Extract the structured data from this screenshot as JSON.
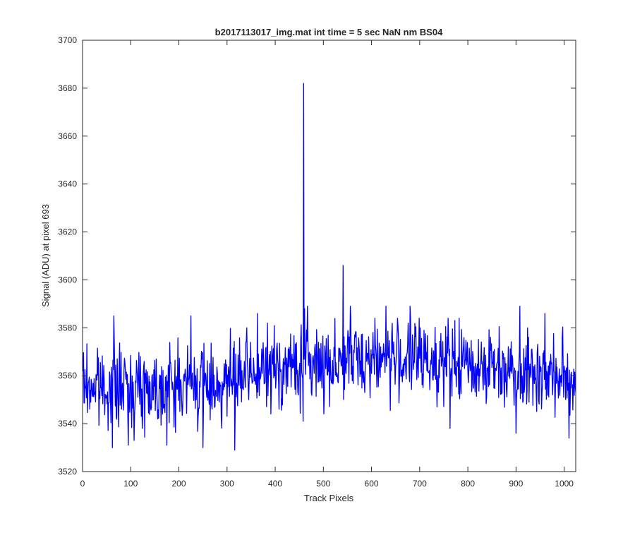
{
  "chart_data": {
    "type": "line",
    "title": "b2017113017_img.mat int time = 5 sec  NaN nm BS04",
    "xlabel": "Track Pixels",
    "ylabel": "Signal (ADU) at pixel 693",
    "xlim": [
      0,
      1024
    ],
    "ylim": [
      3520,
      3700
    ],
    "xticks": [
      0,
      100,
      200,
      300,
      400,
      500,
      600,
      700,
      800,
      900,
      1000
    ],
    "yticks": [
      3520,
      3540,
      3560,
      3580,
      3600,
      3620,
      3640,
      3660,
      3680,
      3700
    ],
    "grid": false,
    "legend": "none",
    "series": [
      {
        "color": "#0000ff",
        "x_start": 1,
        "x_step": 1,
        "noise_seed": 7,
        "baseline_knots": [
          [
            0,
            3556
          ],
          [
            100,
            3555
          ],
          [
            200,
            3556
          ],
          [
            300,
            3557
          ],
          [
            400,
            3563
          ],
          [
            500,
            3565
          ],
          [
            600,
            3568
          ],
          [
            700,
            3567
          ],
          [
            800,
            3565
          ],
          [
            900,
            3563
          ],
          [
            1024,
            3558
          ]
        ],
        "noise_amplitude": 8,
        "spikes": [
          {
            "x": 459,
            "y": 3682
          },
          {
            "x": 458,
            "y": 3541
          },
          {
            "x": 461,
            "y": 3588
          },
          {
            "x": 541,
            "y": 3606
          },
          {
            "x": 62,
            "y": 3530
          },
          {
            "x": 95,
            "y": 3531
          },
          {
            "x": 175,
            "y": 3531
          },
          {
            "x": 250,
            "y": 3530
          },
          {
            "x": 316,
            "y": 3529
          },
          {
            "x": 763,
            "y": 3538
          },
          {
            "x": 900,
            "y": 3536
          },
          {
            "x": 1010,
            "y": 3534
          },
          {
            "x": 65,
            "y": 3585
          },
          {
            "x": 225,
            "y": 3585
          },
          {
            "x": 363,
            "y": 3586
          },
          {
            "x": 467,
            "y": 3589
          },
          {
            "x": 556,
            "y": 3589
          },
          {
            "x": 630,
            "y": 3589
          },
          {
            "x": 680,
            "y": 3589
          },
          {
            "x": 908,
            "y": 3589
          },
          {
            "x": 960,
            "y": 3586
          }
        ]
      }
    ]
  }
}
